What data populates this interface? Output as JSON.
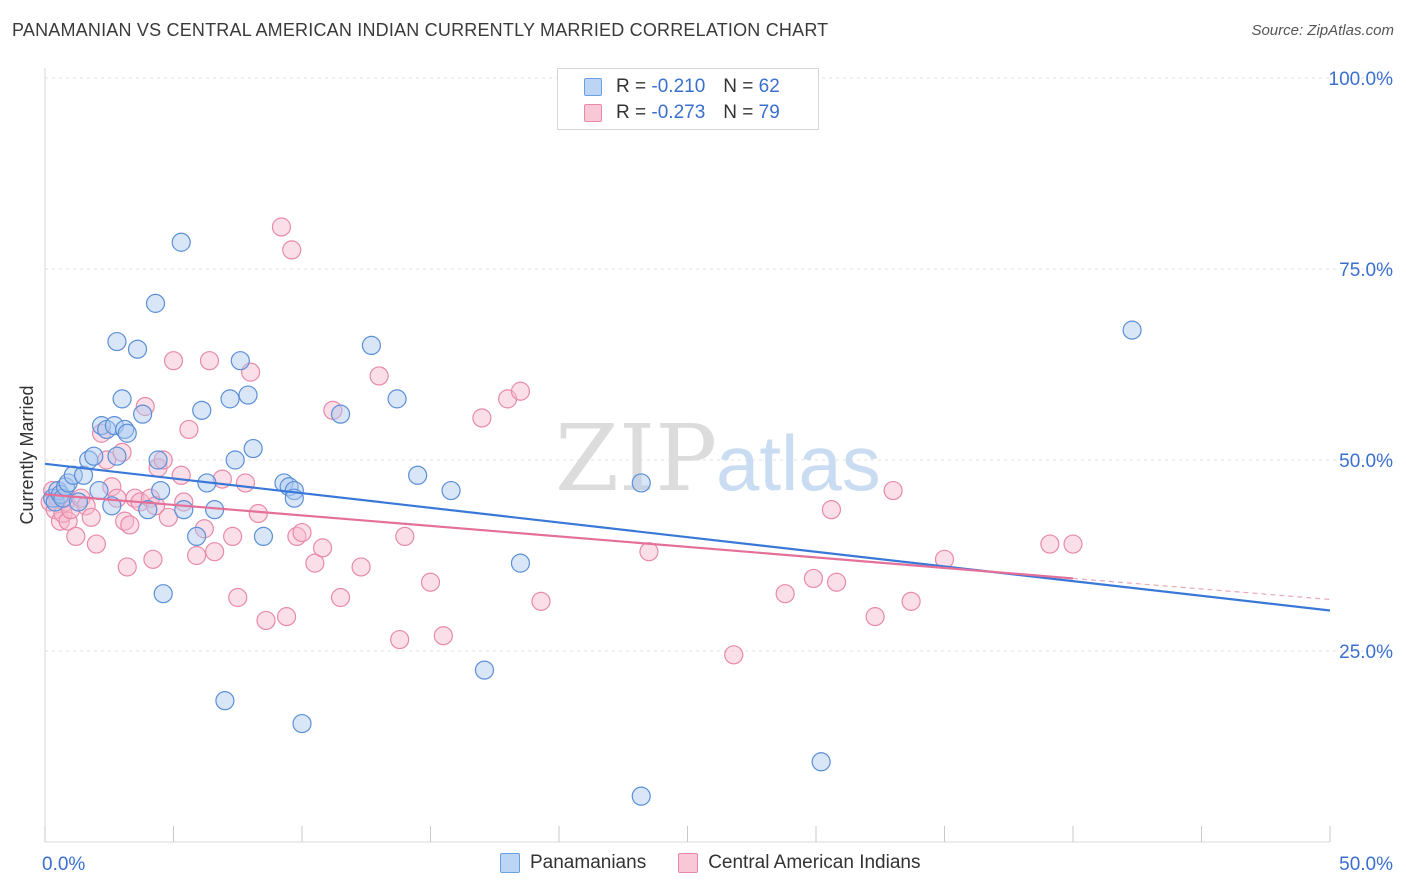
{
  "header": {
    "title": "PANAMANIAN VS CENTRAL AMERICAN INDIAN CURRENTLY MARRIED CORRELATION CHART",
    "source": "Source: ZipAtlas.com"
  },
  "legend": {
    "r_label": "R =",
    "n_label": "N =",
    "series": [
      {
        "r": "-0.210",
        "n": "62",
        "fill": "#bcd5f5",
        "stroke": "#6a9fe0"
      },
      {
        "r": "-0.273",
        "n": "79",
        "fill": "#f8c8d6",
        "stroke": "#e88aa8"
      }
    ]
  },
  "bottom_legend": [
    "Panamanians",
    "Central American Indians"
  ],
  "watermark": {
    "zip": "ZIP",
    "atlas": "atlas"
  },
  "chart_data": {
    "type": "scatter",
    "xlabel": "",
    "ylabel": "Currently Married",
    "xlim": [
      0,
      50
    ],
    "ylim": [
      0,
      100
    ],
    "x_tick_labels": [
      "0.0%",
      "50.0%"
    ],
    "y_tick_labels": [
      "25.0%",
      "50.0%",
      "75.0%",
      "100.0%"
    ],
    "y_ticks": [
      25,
      50,
      75,
      100
    ],
    "grid": true,
    "colors": {
      "blue": "#3a78d8",
      "pink": "#e4709a",
      "blue_fill": "#a9c8f0",
      "pink_fill": "#f6b9cc",
      "axis_text": "#3a6fd0"
    },
    "series": [
      {
        "name": "Panamanians",
        "trend": {
          "x": [
            0,
            50
          ],
          "y": [
            49.5,
            30.3
          ]
        },
        "points": [
          [
            0.3,
            45
          ],
          [
            0.4,
            44.5
          ],
          [
            0.5,
            46
          ],
          [
            0.6,
            45.5
          ],
          [
            0.7,
            45
          ],
          [
            0.8,
            46.5
          ],
          [
            0.9,
            47
          ],
          [
            1.1,
            48
          ],
          [
            1.3,
            44.5
          ],
          [
            1.5,
            48
          ],
          [
            1.7,
            50
          ],
          [
            1.9,
            50.5
          ],
          [
            2.1,
            46
          ],
          [
            2.2,
            54.5
          ],
          [
            2.4,
            54
          ],
          [
            2.6,
            44
          ],
          [
            2.7,
            54.5
          ],
          [
            2.8,
            50.5
          ],
          [
            2.8,
            65.5
          ],
          [
            3.0,
            58
          ],
          [
            3.1,
            54
          ],
          [
            3.2,
            53.5
          ],
          [
            3.6,
            64.5
          ],
          [
            3.8,
            56
          ],
          [
            4.0,
            43.5
          ],
          [
            4.3,
            70.5
          ],
          [
            4.4,
            50
          ],
          [
            4.5,
            46
          ],
          [
            4.6,
            32.5
          ],
          [
            5.3,
            78.5
          ],
          [
            5.4,
            43.5
          ],
          [
            5.9,
            40
          ],
          [
            6.1,
            56.5
          ],
          [
            6.3,
            47
          ],
          [
            6.6,
            43.5
          ],
          [
            7.0,
            18.5
          ],
          [
            7.2,
            58
          ],
          [
            7.4,
            50
          ],
          [
            7.6,
            63
          ],
          [
            7.9,
            58.5
          ],
          [
            8.1,
            51.5
          ],
          [
            8.5,
            40
          ],
          [
            9.3,
            47
          ],
          [
            9.5,
            46.5
          ],
          [
            9.7,
            46
          ],
          [
            9.7,
            45
          ],
          [
            10.0,
            15.5
          ],
          [
            11.5,
            56
          ],
          [
            12.7,
            65
          ],
          [
            13.7,
            58
          ],
          [
            14.5,
            48
          ],
          [
            15.8,
            46
          ],
          [
            17.1,
            22.5
          ],
          [
            18.5,
            36.5
          ],
          [
            23.2,
            6
          ],
          [
            23.2,
            47
          ],
          [
            30.2,
            10.5
          ],
          [
            42.3,
            67
          ]
        ]
      },
      {
        "name": "Central American Indians",
        "trend": {
          "x": [
            0,
            40
          ],
          "y": [
            45.5,
            34.5
          ]
        },
        "points": [
          [
            0.2,
            44.5
          ],
          [
            0.3,
            46
          ],
          [
            0.4,
            43.5
          ],
          [
            0.5,
            45
          ],
          [
            0.6,
            42
          ],
          [
            0.7,
            43
          ],
          [
            0.8,
            44.5
          ],
          [
            0.9,
            42
          ],
          [
            1.0,
            43.5
          ],
          [
            1.2,
            40
          ],
          [
            1.4,
            45
          ],
          [
            1.6,
            44
          ],
          [
            1.8,
            42.5
          ],
          [
            2.0,
            39
          ],
          [
            2.2,
            53.5
          ],
          [
            2.4,
            50
          ],
          [
            2.6,
            46.5
          ],
          [
            2.8,
            45
          ],
          [
            3.0,
            51
          ],
          [
            3.1,
            42
          ],
          [
            3.2,
            36
          ],
          [
            3.3,
            41.5
          ],
          [
            3.5,
            45
          ],
          [
            3.7,
            44.5
          ],
          [
            3.9,
            57
          ],
          [
            4.1,
            45
          ],
          [
            4.2,
            37
          ],
          [
            4.3,
            44
          ],
          [
            4.4,
            49
          ],
          [
            4.6,
            50
          ],
          [
            4.8,
            42.5
          ],
          [
            5.0,
            63
          ],
          [
            5.3,
            48
          ],
          [
            5.4,
            44.5
          ],
          [
            5.6,
            54
          ],
          [
            5.9,
            37.5
          ],
          [
            6.2,
            41
          ],
          [
            6.4,
            63
          ],
          [
            6.6,
            38
          ],
          [
            6.9,
            47.5
          ],
          [
            7.3,
            40
          ],
          [
            7.5,
            32
          ],
          [
            7.8,
            47
          ],
          [
            8.0,
            61.5
          ],
          [
            8.3,
            43
          ],
          [
            8.6,
            29
          ],
          [
            9.2,
            80.5
          ],
          [
            9.4,
            29.5
          ],
          [
            9.6,
            77.5
          ],
          [
            9.8,
            40
          ],
          [
            10.0,
            40.5
          ],
          [
            10.5,
            36.5
          ],
          [
            10.8,
            38.5
          ],
          [
            11.2,
            56.5
          ],
          [
            11.5,
            32
          ],
          [
            12.3,
            36
          ],
          [
            13.0,
            61
          ],
          [
            13.8,
            26.5
          ],
          [
            14.0,
            40
          ],
          [
            15.0,
            34
          ],
          [
            15.5,
            27
          ],
          [
            17.0,
            55.5
          ],
          [
            18.0,
            58
          ],
          [
            18.5,
            59
          ],
          [
            19.3,
            31.5
          ],
          [
            23.5,
            38
          ],
          [
            26.8,
            24.5
          ],
          [
            28.8,
            32.5
          ],
          [
            29.9,
            34.5
          ],
          [
            30.6,
            43.5
          ],
          [
            30.8,
            34
          ],
          [
            32.3,
            29.5
          ],
          [
            33.0,
            46
          ],
          [
            33.7,
            31.5
          ],
          [
            35.0,
            37
          ],
          [
            39.1,
            39
          ],
          [
            40.0,
            39
          ]
        ]
      }
    ]
  }
}
